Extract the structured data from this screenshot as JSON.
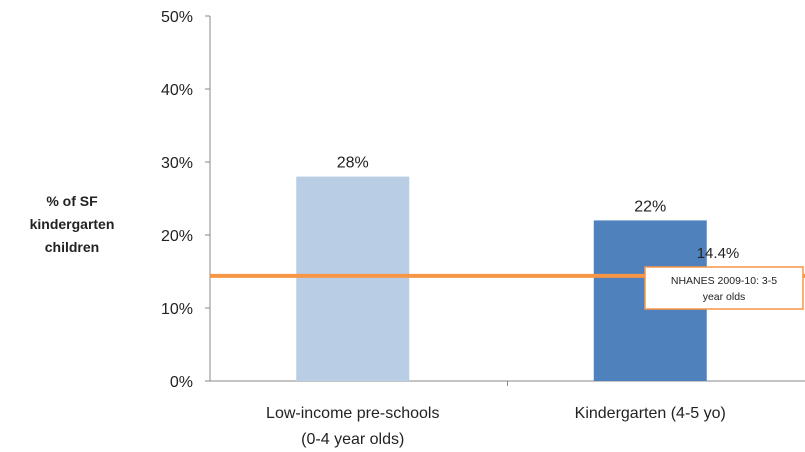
{
  "chart_data": {
    "type": "bar",
    "title": "",
    "xlabel": "",
    "ylabel_lines": [
      "% of SF",
      "kindergarten",
      "children"
    ],
    "categories": [
      [
        "Low-income pre-schools",
        "(0-4 year olds)"
      ],
      [
        "Kindergarten (4-5 yo)"
      ]
    ],
    "values": [
      28,
      22
    ],
    "value_labels": [
      "28%",
      "22%"
    ],
    "bar_colors": [
      "#b9cde5",
      "#4f81bd"
    ],
    "ylim": [
      0,
      50
    ],
    "yticks": [
      0,
      10,
      20,
      30,
      40,
      50
    ],
    "ytick_labels": [
      "0%",
      "10%",
      "20%",
      "30%",
      "40%",
      "50%"
    ],
    "grid": false,
    "legend": "none",
    "reference_line": {
      "value": 14.4,
      "value_label": "14.4%",
      "color": "#f79646",
      "label_lines": [
        "NHANES 2009-10: 3-5",
        "year olds"
      ]
    }
  }
}
